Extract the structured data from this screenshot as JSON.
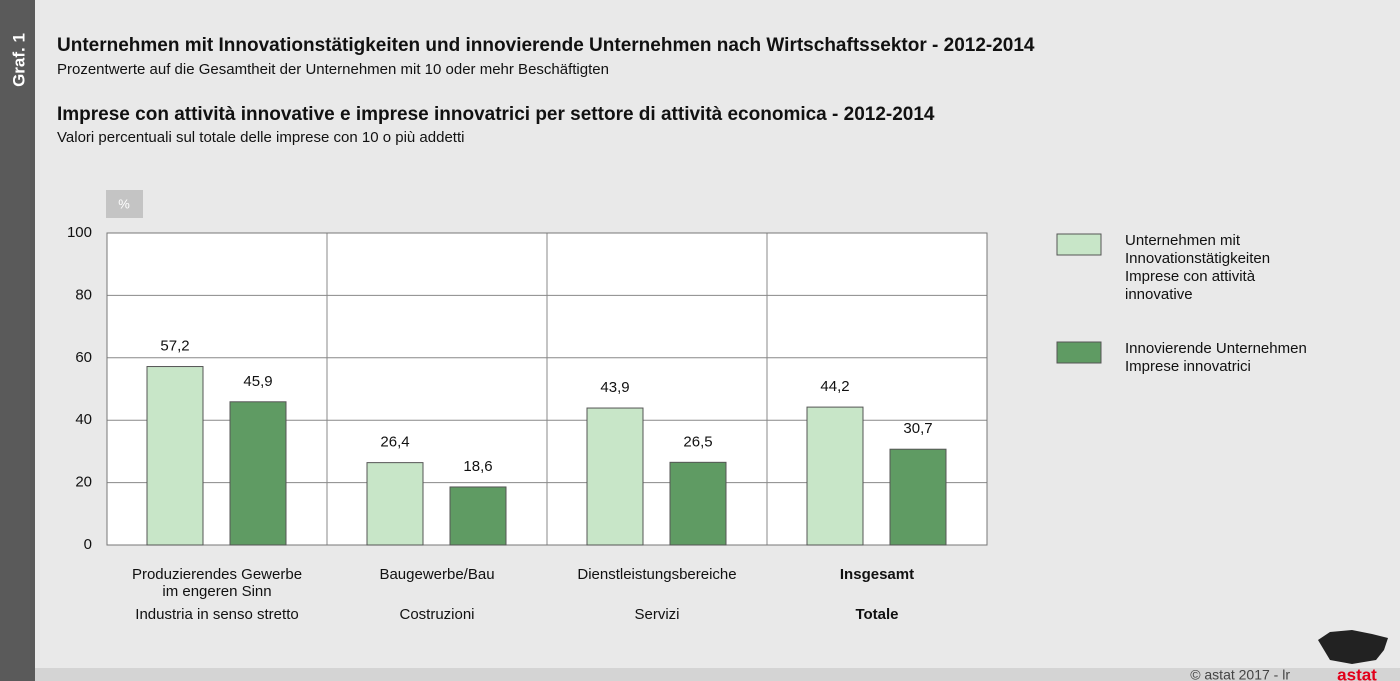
{
  "chart_data": {
    "type": "bar",
    "side_label": "Graf. 1",
    "title": "Unternehmen mit Innovationstätigkeiten und innovierende Unternehmen nach Wirtschaftssektor - 2012-2014",
    "subtitle": "Prozentwerte auf die Gesamtheit der Unternehmen mit 10 oder mehr Beschäftigten",
    "title_it": "Imprese con attività innovative e imprese innovatrici per settore di attività economica - 2012-2014",
    "subtitle_it": "Valori percentuali sul totale delle imprese con 10 o più addetti",
    "y_unit": "%",
    "categories": [
      {
        "de": [
          "Produzierendes Gewerbe",
          "im engeren Sinn"
        ],
        "it": "Industria in senso stretto",
        "bold": false
      },
      {
        "de": [
          "Baugewerbe/Bau"
        ],
        "it": "Costruzioni",
        "bold": false
      },
      {
        "de": [
          "Dienstleistungsbereiche"
        ],
        "it": "Servizi",
        "bold": false
      },
      {
        "de": [
          "Insgesamt"
        ],
        "it": "Totale",
        "bold": true
      }
    ],
    "series": [
      {
        "name": [
          "Unternehmen mit",
          "Innovationstätigkeiten",
          "Imprese con attività",
          "innovative"
        ],
        "color": "#c8e6c8",
        "values": [
          57.2,
          26.4,
          43.9,
          44.2
        ],
        "value_labels": [
          "57,2",
          "26,4",
          "43,9",
          "44,2"
        ]
      },
      {
        "name": [
          "Innovierende Unternehmen",
          "Imprese innovatrici"
        ],
        "color": "#5f9b63",
        "values": [
          45.9,
          18.6,
          26.5,
          30.7
        ],
        "value_labels": [
          "45,9",
          "18,6",
          "26,5",
          "30,7"
        ]
      }
    ],
    "ylim": [
      0,
      100
    ],
    "yticks": [
      0,
      20,
      40,
      60,
      80,
      100
    ],
    "grid": true,
    "copyright": "© astat 2017 - lr",
    "logo": "astat"
  }
}
